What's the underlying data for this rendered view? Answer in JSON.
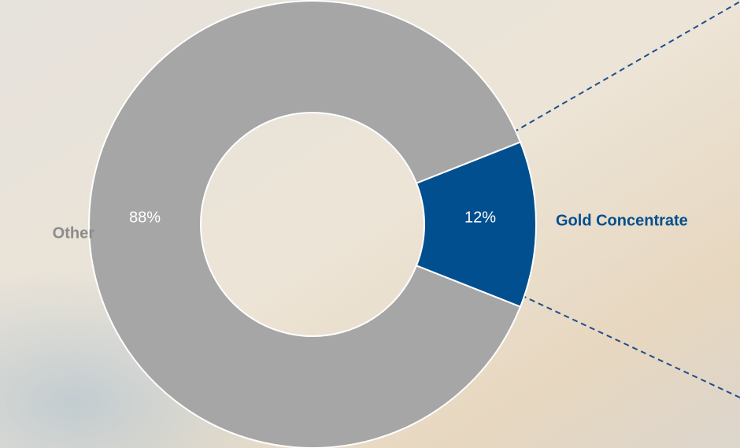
{
  "chart_data": {
    "type": "donut",
    "categories": [
      "Other",
      "Gold Concentrate"
    ],
    "values": [
      88,
      12
    ],
    "value_labels": [
      "88%",
      "12%"
    ],
    "colors": [
      "#a6a6a6",
      "#024f8f"
    ],
    "category_label_colors": [
      "#8c8c8c",
      "#024f8f"
    ]
  }
}
